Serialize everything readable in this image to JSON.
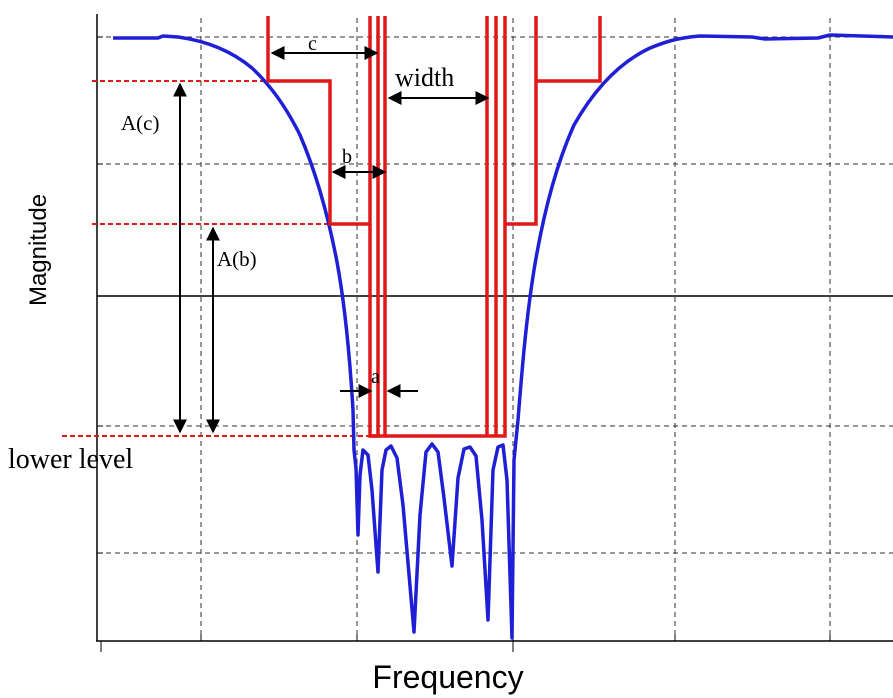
{
  "chart_data": {
    "type": "line",
    "xlabel": "Frequency",
    "ylabel": "Magnitude",
    "annotations": [
      "c",
      "width",
      "b",
      "A(c)",
      "A(b)",
      "a",
      "lower level"
    ],
    "grid": true,
    "series_colors": {
      "response": "#1f1fd6",
      "mask": "#e01818",
      "guide": "#e01818",
      "axes": "#000000"
    }
  }
}
